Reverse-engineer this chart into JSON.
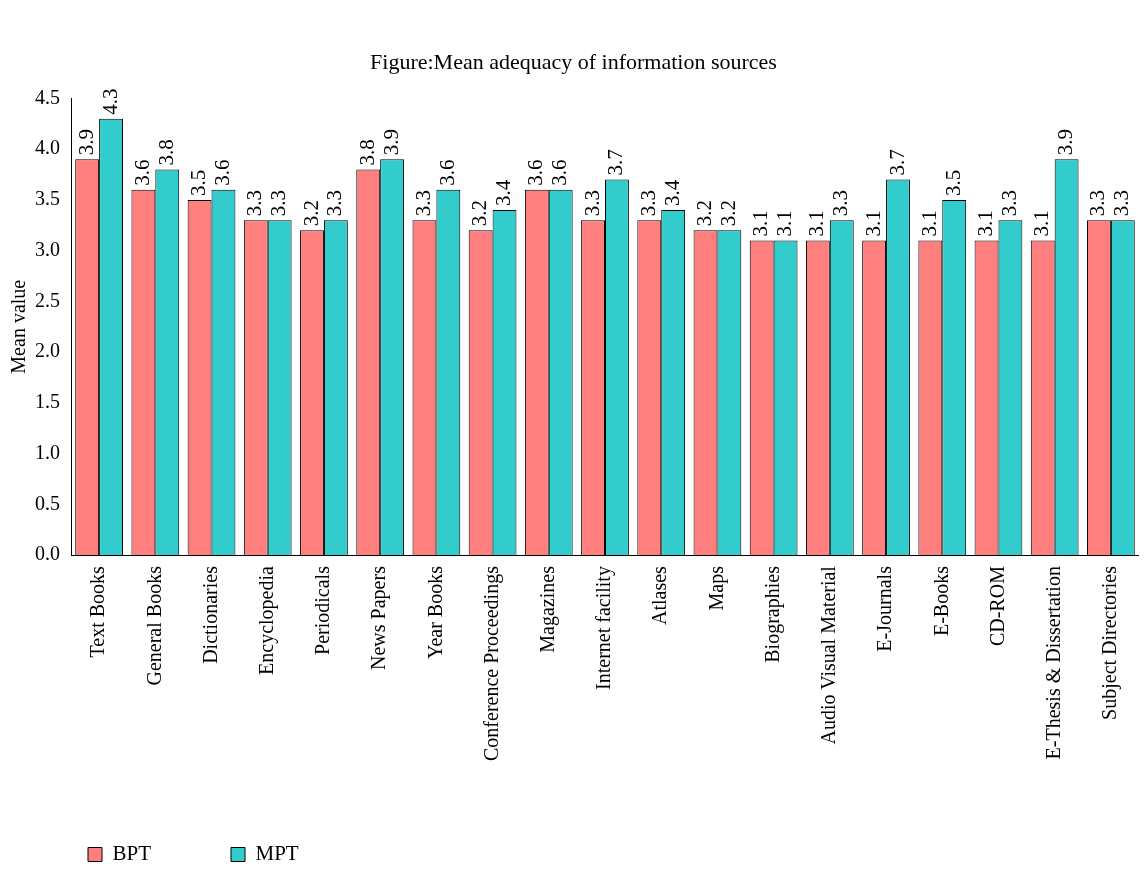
{
  "chart_data": {
    "type": "bar",
    "title": "Figure:Mean adequacy of information sources",
    "ylabel": "Mean value",
    "categories": [
      "Text Books",
      "General Books",
      "Dictionaries",
      "Encyclopedia",
      "Periodicals",
      "News Papers",
      "Year Books",
      "Conference Proceedings",
      "Magazines",
      "Internet facility",
      "Atlases",
      "Maps",
      "Biographies",
      "Audio Visual Material",
      "E-Journals",
      "E-Books",
      "CD-ROM",
      "E-Thesis & Dissertation",
      "Subject Directories"
    ],
    "series": [
      {
        "name": "BPT",
        "color": "#ff7f7f",
        "values": [
          3.9,
          3.6,
          3.5,
          3.3,
          3.2,
          3.8,
          3.3,
          3.2,
          3.6,
          3.3,
          3.3,
          3.2,
          3.1,
          3.1,
          3.1,
          3.1,
          3.1,
          3.1,
          3.3
        ]
      },
      {
        "name": "MPT",
        "color": "#33cccc",
        "values": [
          4.3,
          3.8,
          3.6,
          3.3,
          3.3,
          3.9,
          3.6,
          3.4,
          3.6,
          3.7,
          3.4,
          3.2,
          3.1,
          3.3,
          3.7,
          3.5,
          3.3,
          3.9,
          3.3
        ]
      }
    ],
    "ylim": [
      0,
      4.5
    ],
    "yticks": [
      {
        "value": 0,
        "label": "0.0"
      },
      {
        "value": 0.5,
        "label": "0.5"
      },
      {
        "value": 1,
        "label": "1.0"
      },
      {
        "value": 1.5,
        "label": "1.5"
      },
      {
        "value": 2,
        "label": "2.0"
      },
      {
        "value": 2.5,
        "label": "2.5"
      },
      {
        "value": 3,
        "label": "3.0"
      },
      {
        "value": 3.5,
        "label": "3.5"
      },
      {
        "value": 4,
        "label": "4.0"
      },
      {
        "value": 4.5,
        "label": "4.5"
      }
    ],
    "grid": false,
    "legend": "bottom left",
    "data_labels": true
  }
}
